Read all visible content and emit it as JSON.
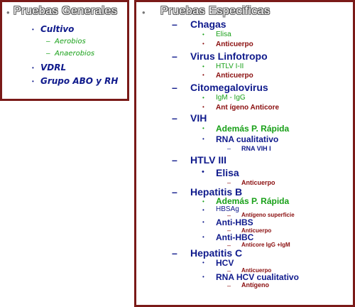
{
  "left": {
    "title": "Pruebas Generales",
    "items": [
      {
        "label": "Cultivo",
        "sub": [
          "Aerobios",
          "Anaerobios"
        ]
      },
      {
        "label": "VDRL"
      },
      {
        "label": "Grupo ABO y RH"
      }
    ],
    "bullet": "•",
    "dash": "–"
  },
  "right": {
    "title": "Pruebas Especificas",
    "groups": [
      {
        "name": "Chagas",
        "items": [
          "Elisa",
          "Anticuerpo"
        ]
      },
      {
        "name": "Virus  Linfotropo",
        "items": [
          "HTLV I-II",
          "Anticuerpo"
        ]
      },
      {
        "name": "Citomegalovirus",
        "items": [
          "IgM   -  IgG",
          "Ant ígeno Anticore"
        ]
      },
      {
        "name": "VIH",
        "items": [
          "Además P. Rápida",
          "RNA cualitativo"
        ],
        "subs": [
          "RNA VIH I"
        ]
      },
      {
        "name": "HTLV III",
        "items": [
          "Elisa"
        ],
        "subs": [
          "Anticuerpo"
        ]
      },
      {
        "name": "Hepatitis B",
        "items": [
          "Además P. Rápida",
          "HBSAg",
          "Anti-HBS",
          "Anti-HBC"
        ],
        "subs": [
          "Antígeno superficie",
          "Anticuerpo",
          "Anticore IgG    +IgM"
        ]
      },
      {
        "name": "Hepatitis C",
        "items": [
          "HCV",
          "RNA HCV cualitativo"
        ],
        "subs": [
          "Anticuerpo",
          "Antígeno"
        ]
      }
    ],
    "bullet": "•",
    "dash": "–"
  }
}
